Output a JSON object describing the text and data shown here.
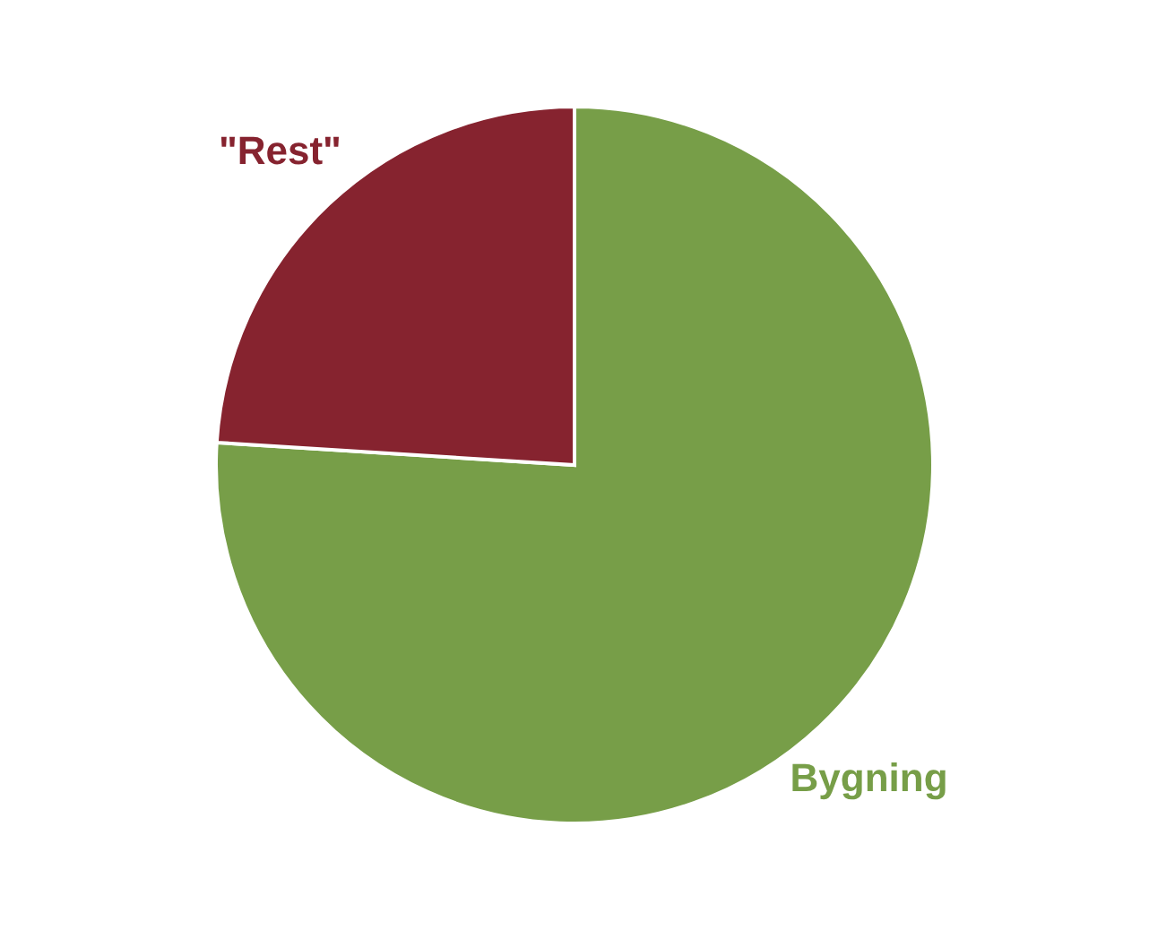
{
  "chart_data": {
    "type": "pie",
    "categories": [
      "Bygning",
      "\"Rest\""
    ],
    "values": [
      76,
      24
    ],
    "colors": [
      "#779e48",
      "#86232f"
    ],
    "legend": false
  }
}
